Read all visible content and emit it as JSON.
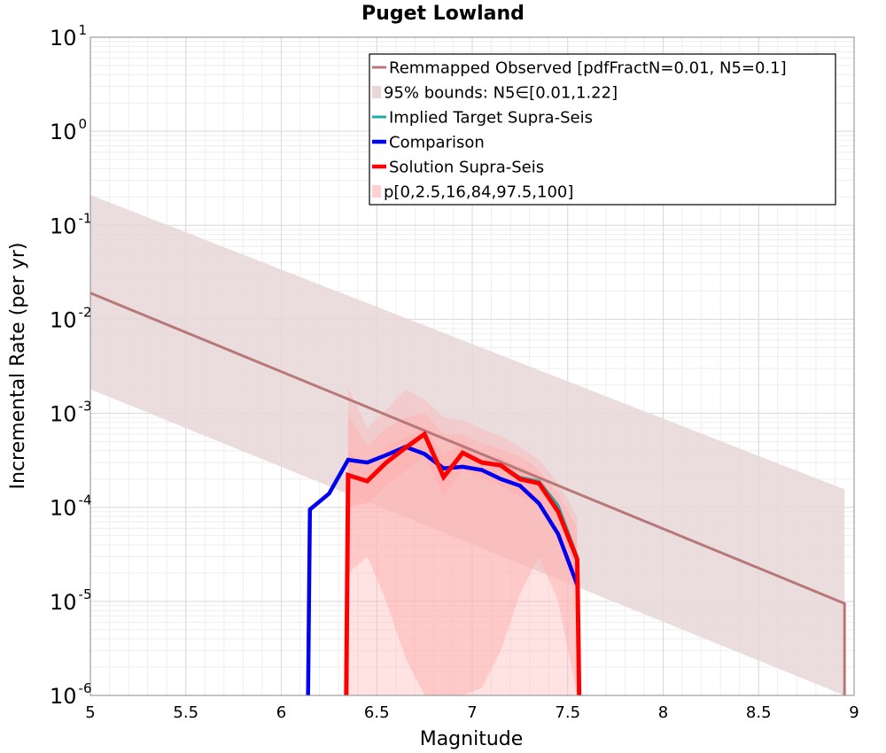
{
  "chart_data": {
    "type": "line",
    "title": "Puget Lowland",
    "xlabel": "Magnitude",
    "ylabel": "Incremental Rate (per yr)",
    "xlim": [
      5,
      9
    ],
    "ylim": [
      1e-06,
      10
    ],
    "yscale": "log",
    "grid": true,
    "legend_position": "top-right",
    "xticks": [
      "5",
      "5.5",
      "6",
      "6.5",
      "7",
      "7.5",
      "8",
      "8.5",
      "9"
    ],
    "yticks": [
      {
        "base": "10",
        "exp": "1"
      },
      {
        "base": "10",
        "exp": "0"
      },
      {
        "base": "10",
        "exp": "-1"
      },
      {
        "base": "10",
        "exp": "-2"
      },
      {
        "base": "10",
        "exp": "-3"
      },
      {
        "base": "10",
        "exp": "-4"
      },
      {
        "base": "10",
        "exp": "-5"
      },
      {
        "base": "10",
        "exp": "-6"
      }
    ],
    "colors": {
      "observed": "#b87878",
      "observed_band": "#e8d6d8",
      "implied": "#22aaaa",
      "comparison": "#0000ee",
      "solution": "#ff0000",
      "solution_band": "#ffb0b0",
      "legend_solution_band": "#ffd0d0"
    },
    "legend": [
      {
        "key": "observed",
        "label": "Remmapped Observed [pdfFractN=0.01, N5=0.1]",
        "kind": "line"
      },
      {
        "key": "observed_band",
        "label": "95% bounds: N5∈[0.01,1.22]",
        "kind": "box"
      },
      {
        "key": "implied",
        "label": "Implied Target Supra-Seis",
        "kind": "line"
      },
      {
        "key": "comparison",
        "label": "Comparison",
        "kind": "thickline"
      },
      {
        "key": "solution",
        "label": "Solution Supra-Seis",
        "kind": "thickline"
      },
      {
        "key": "legend_solution_band",
        "label": "p[0,2.5,16,84,97.5,100]",
        "kind": "box"
      }
    ],
    "observed": {
      "x": [
        5.0,
        8.95,
        8.95
      ],
      "y": [
        0.019,
        9.5e-06,
        1e-06
      ]
    },
    "observed_band": {
      "x": [
        5.0,
        8.95,
        8.95
      ],
      "upper": [
        0.21,
        0.000155,
        1e-06
      ],
      "lower": [
        0.0018,
        1e-06,
        1e-06
      ]
    },
    "comparison": {
      "x": [
        6.14,
        6.15,
        6.25,
        6.35,
        6.45,
        6.55,
        6.65,
        6.75,
        6.85,
        6.95,
        7.05,
        7.15,
        7.25,
        7.35,
        7.45,
        7.55
      ],
      "y": [
        1e-06,
        9.5e-05,
        0.00014,
        0.00032,
        0.0003,
        0.00036,
        0.00044,
        0.00037,
        0.00026,
        0.00027,
        0.00025,
        0.0002,
        0.00017,
        0.00011,
        5.2e-05,
        1.5e-05
      ]
    },
    "implied": {
      "x": [
        6.75,
        6.85,
        6.95,
        7.05,
        7.15,
        7.25,
        7.35,
        7.45,
        7.55
      ],
      "y": [
        0.00058,
        0.00022,
        0.00038,
        0.0003,
        0.00028,
        0.00021,
        0.00019,
        0.000105,
        3e-05
      ]
    },
    "solution": {
      "x": [
        6.34,
        6.35,
        6.45,
        6.55,
        6.65,
        6.75,
        6.85,
        6.95,
        7.05,
        7.15,
        7.25,
        7.35,
        7.45,
        7.55,
        7.56
      ],
      "y": [
        1e-06,
        0.00022,
        0.00019,
        0.0003,
        0.00043,
        0.0006,
        0.00021,
        0.00038,
        0.0003,
        0.00028,
        0.0002,
        0.00018,
        9e-05,
        2.8e-05,
        1e-06
      ]
    },
    "solution_band_outer": {
      "x": [
        6.35,
        6.45,
        6.55,
        6.65,
        6.75,
        6.85,
        6.95,
        7.05,
        7.15,
        7.25,
        7.35,
        7.45,
        7.55
      ],
      "upper": [
        0.0019,
        0.0007,
        0.0011,
        0.0018,
        0.0014,
        0.0009,
        0.00085,
        0.00068,
        0.00058,
        0.00044,
        0.00032,
        0.00018,
        8e-05
      ],
      "lower": [
        1e-06,
        1e-06,
        1e-06,
        1e-06,
        1e-06,
        1e-06,
        1e-06,
        1e-06,
        1e-06,
        1e-06,
        1e-06,
        1e-06,
        1e-06
      ]
    },
    "solution_band_mid": {
      "x": [
        6.35,
        6.45,
        6.55,
        6.65,
        6.75,
        6.85,
        6.95,
        7.05,
        7.15,
        7.25,
        7.35,
        7.45,
        7.55
      ],
      "upper": [
        0.001,
        0.00045,
        0.0007,
        0.0009,
        0.001,
        0.0006,
        0.0006,
        0.00048,
        0.00042,
        0.00035,
        0.00025,
        0.00014,
        6e-05
      ],
      "lower": [
        2e-05,
        3e-05,
        1e-05,
        2.5e-06,
        1e-06,
        1e-06,
        1e-06,
        1.2e-06,
        3e-06,
        1.2e-05,
        3e-05,
        1e-05,
        1e-06
      ]
    },
    "solution_band_inner": {
      "x": [
        6.35,
        6.45,
        6.55,
        6.65,
        6.75,
        6.85,
        6.95,
        7.05,
        7.15,
        7.25,
        7.35,
        7.45,
        7.55
      ],
      "upper": [
        0.0004,
        0.00028,
        0.00045,
        0.00055,
        0.0007,
        0.00036,
        0.00048,
        0.00038,
        0.00034,
        0.00027,
        0.00022,
        0.00011,
        4e-05
      ],
      "lower": [
        0.0001,
        0.00011,
        0.00017,
        0.00024,
        0.00035,
        0.00013,
        0.00025,
        0.0002,
        0.00017,
        0.00013,
        0.00011,
        5e-05,
        1.5e-05
      ]
    }
  }
}
